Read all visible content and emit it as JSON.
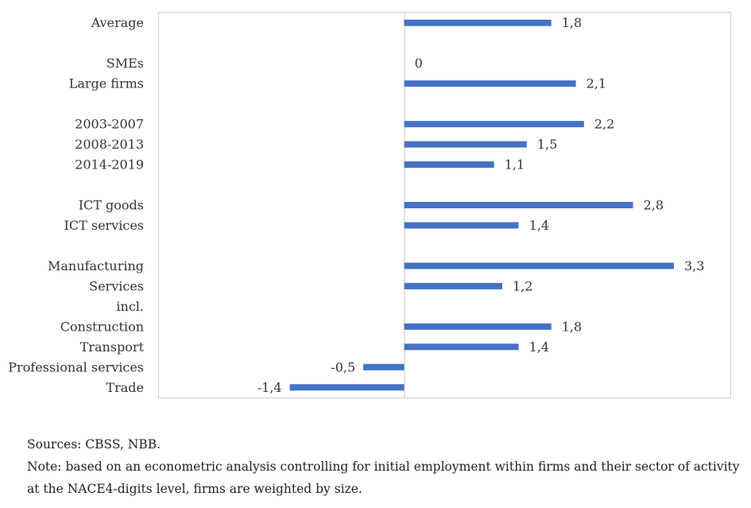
{
  "chart_data": {
    "type": "bar",
    "orientation": "horizontal",
    "categories": [
      "Average",
      "",
      "SMEs",
      "Large firms",
      "",
      "2003-2007",
      "2008-2013",
      "2014-2019",
      "",
      "ICT goods",
      "ICT services",
      "",
      "Manufacturing",
      "Services",
      "incl.",
      "Construction",
      "Transport",
      "Professional services",
      "Trade"
    ],
    "values": [
      1.8,
      null,
      0,
      2.1,
      null,
      2.2,
      1.5,
      1.1,
      null,
      2.8,
      1.4,
      null,
      3.3,
      1.2,
      null,
      1.8,
      1.4,
      -0.5,
      -1.4
    ],
    "value_labels": [
      "1,8",
      "",
      "0",
      "2,1",
      "",
      "2,2",
      "1,5",
      "1,1",
      "",
      "2,8",
      "1,4",
      "",
      "3,3",
      "1,2",
      "",
      "1,8",
      "1,4",
      "-0,5",
      "-1,4"
    ],
    "xlim": [
      -3,
      4
    ],
    "bar_color": "#4472C4",
    "grid": false
  },
  "notes": {
    "sources": "Sources: CBSS, NBB.",
    "note": "Note: based on an econometric analysis controlling for initial employment within firms and their sector of activity at the NACE4-digits level, firms are weighted by size."
  }
}
